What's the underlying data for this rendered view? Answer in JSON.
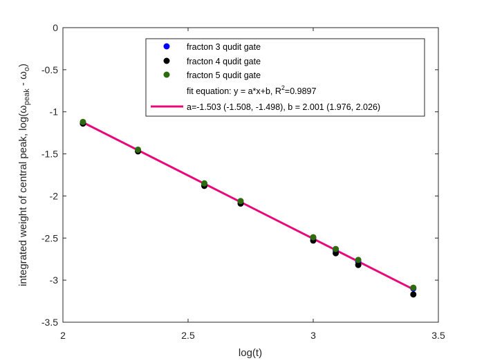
{
  "chart_data": {
    "type": "scatter",
    "xlabel": "log(t)",
    "ylabel_parts": {
      "prefix": "integrated weight of central peak, log(",
      "omega": "ω",
      "sub1": "peak",
      "mid": " - ",
      "sub2": "o",
      "suffix": ")"
    },
    "xlim": [
      2,
      3.5
    ],
    "ylim": [
      -3.5,
      0
    ],
    "x_ticks": [
      2,
      2.5,
      3,
      3.5
    ],
    "x_tick_labels": [
      "2",
      "2.5",
      "3",
      "3.5"
    ],
    "y_ticks": [
      0,
      -0.5,
      -1,
      -1.5,
      -2,
      -2.5,
      -3,
      -3.5
    ],
    "y_tick_labels": [
      "0",
      "-0.5",
      "-1",
      "-1.5",
      "-2",
      "-2.5",
      "-3",
      "-3.5"
    ],
    "grid": false,
    "legend_placement": "top-right",
    "series": [
      {
        "name": "fracton 3 qudit gate",
        "color": "#0000ff",
        "x": [
          2.08,
          2.3,
          2.565,
          2.71,
          3.0,
          3.09,
          3.18,
          3.4
        ],
        "y": [
          -1.13,
          -1.46,
          -1.86,
          -2.07,
          -2.5,
          -2.65,
          -2.78,
          -3.1
        ]
      },
      {
        "name": "fracton 4 qudit gate",
        "color": "#000000",
        "x": [
          2.08,
          2.3,
          2.565,
          2.71,
          3.0,
          3.09,
          3.18,
          3.4
        ],
        "y": [
          -1.14,
          -1.47,
          -1.88,
          -2.09,
          -2.53,
          -2.68,
          -2.82,
          -3.17
        ]
      },
      {
        "name": "fracton 5 qudit gate",
        "color": "#2e6b0f",
        "x": [
          2.08,
          2.3,
          2.565,
          2.71,
          3.0,
          3.09,
          3.18,
          3.4
        ],
        "y": [
          -1.12,
          -1.45,
          -1.85,
          -2.06,
          -2.49,
          -2.63,
          -2.76,
          -3.09
        ]
      }
    ],
    "fit": {
      "color": "#e8087a",
      "a": -1.503,
      "b": 2.001,
      "x_range": [
        2.08,
        3.4
      ],
      "equation_prefix": "fit equation:  y = a*x+b, R",
      "equation_sup": "2",
      "equation_suffix": "=0.9897",
      "params_label": "a=-1.503 (-1.508, -1.498), b = 2.001 (1.976, 2.026)"
    }
  }
}
